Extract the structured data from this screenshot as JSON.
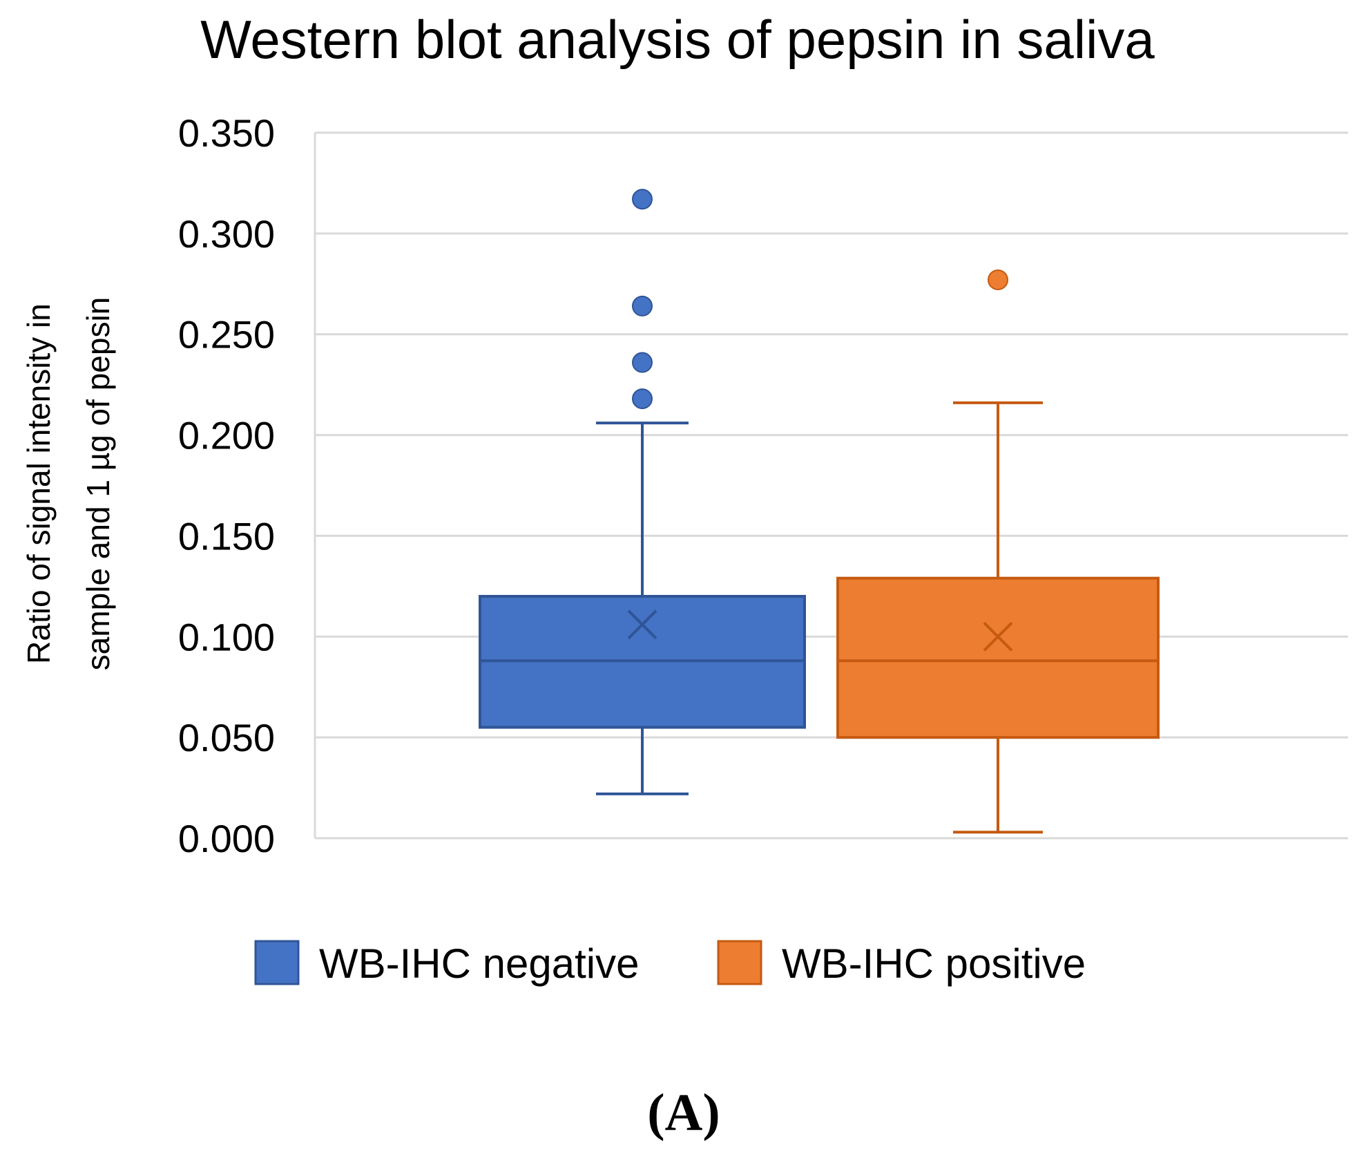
{
  "chart_data": {
    "type": "box",
    "title": "Western blot analysis of pepsin in saliva",
    "ylabel_lines": [
      "Ratio of signal intensity in",
      "sample and 1 µg of pepsin"
    ],
    "xlabel": "",
    "ylim": [
      0,
      0.35
    ],
    "yticks": [
      "0.000",
      "0.050",
      "0.100",
      "0.150",
      "0.200",
      "0.250",
      "0.300",
      "0.350"
    ],
    "ytick_values": [
      0,
      0.05,
      0.1,
      0.15,
      0.2,
      0.25,
      0.3,
      0.35
    ],
    "grid": true,
    "legend_position": "bottom",
    "series": [
      {
        "name": "WB-IHC negative",
        "color": "#4472C4",
        "edge_color": "#2F5597",
        "whisker_low": 0.022,
        "q1": 0.055,
        "median": 0.088,
        "q3": 0.12,
        "whisker_high": 0.206,
        "mean": 0.106,
        "outliers": [
          0.218,
          0.236,
          0.264,
          0.317
        ]
      },
      {
        "name": "WB-IHC positive",
        "color": "#ED7D31",
        "edge_color": "#C55A11",
        "whisker_low": 0.003,
        "q1": 0.05,
        "median": 0.088,
        "q3": 0.129,
        "whisker_high": 0.216,
        "mean": 0.1,
        "outliers": [
          0.277
        ]
      }
    ]
  },
  "panel_label": "(A)"
}
